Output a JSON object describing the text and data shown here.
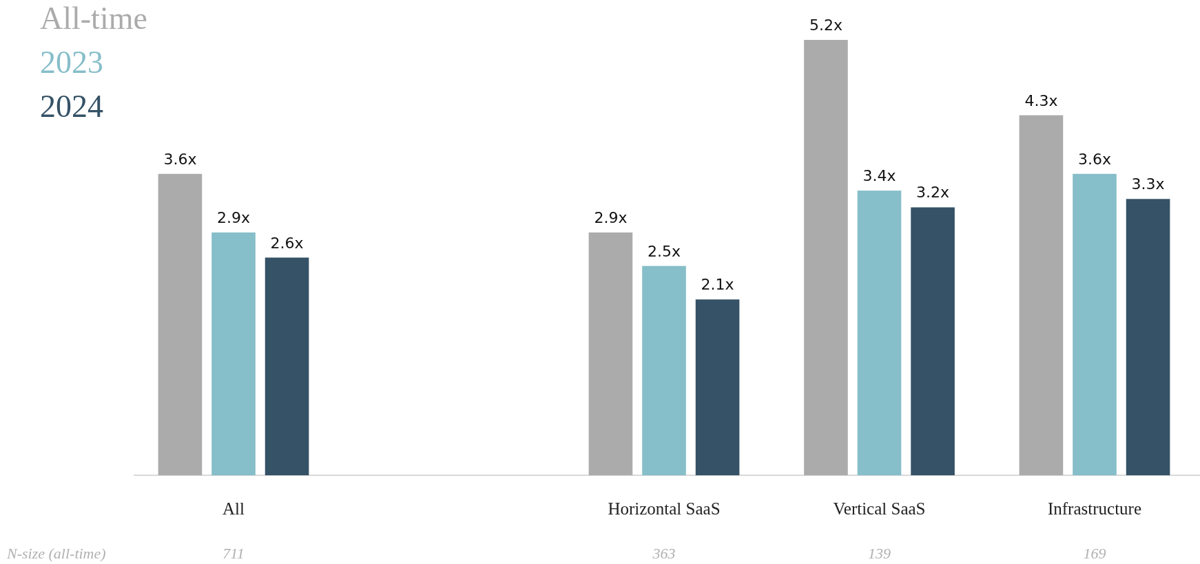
{
  "chart_data": {
    "type": "bar",
    "categories": [
      "All",
      null,
      "Horizontal SaaS",
      "Vertical SaaS",
      "Infrastructure"
    ],
    "series": [
      {
        "name": "All-time",
        "color": "#ababab",
        "values": [
          3.6,
          null,
          2.9,
          5.2,
          4.3
        ],
        "value_labels": [
          "3.6x",
          null,
          "2.9x",
          "5.2x",
          "4.3x"
        ]
      },
      {
        "name": "2023",
        "color": "#86bec9",
        "values": [
          2.9,
          null,
          2.5,
          3.4,
          3.6
        ],
        "value_labels": [
          "2.9x",
          null,
          "2.5x",
          "3.4x",
          "3.6x"
        ]
      },
      {
        "name": "2024",
        "color": "#355266",
        "values": [
          2.6,
          null,
          2.1,
          3.2,
          3.3
        ],
        "value_labels": [
          "2.6x",
          null,
          "2.1x",
          "3.2x",
          "3.3x"
        ]
      }
    ],
    "legend": "top left",
    "annotations": [
      "N-size (all-time)",
      "711",
      "363",
      "139",
      "169"
    ]
  }
}
